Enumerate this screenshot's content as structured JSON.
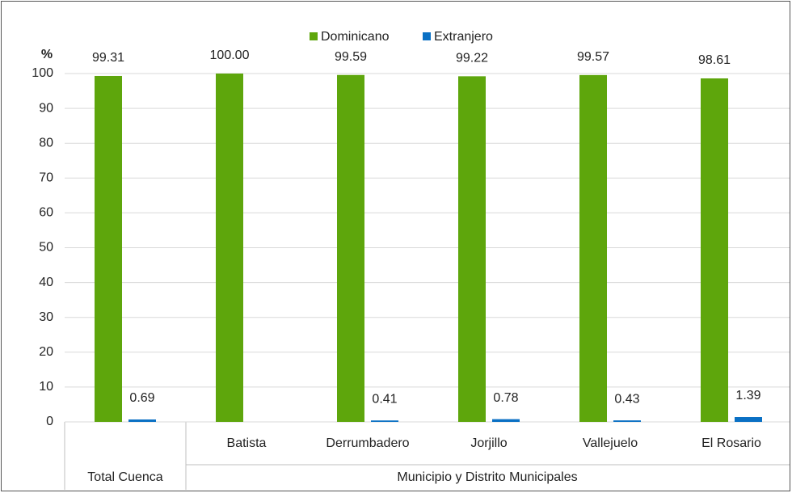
{
  "chart_data": {
    "type": "bar",
    "y_label": "%",
    "categories": [
      "Total Cuenca",
      "Batista",
      "Derrumbadero",
      "Jorjillo",
      "Vallejuelo",
      "El Rosario"
    ],
    "category_group": "Municipio y Distrito Municipales",
    "series": [
      {
        "name": "Dominicano",
        "color": "#5ea60c",
        "values": [
          99.31,
          100,
          99.59,
          99.22,
          99.57,
          98.61
        ],
        "value_labels": [
          "99.31",
          "100.00",
          "99.59",
          "99.22",
          "99.57",
          "98.61"
        ]
      },
      {
        "name": "Extranjero",
        "color": "#0a70c4",
        "values": [
          0.69,
          null,
          0.41,
          0.78,
          0.43,
          1.39
        ]
      }
    ],
    "ylim": [
      0,
      100
    ],
    "yticks": [
      0,
      10,
      20,
      30,
      40,
      50,
      60,
      70,
      80,
      90,
      100
    ],
    "grid": true,
    "legend": "top"
  }
}
